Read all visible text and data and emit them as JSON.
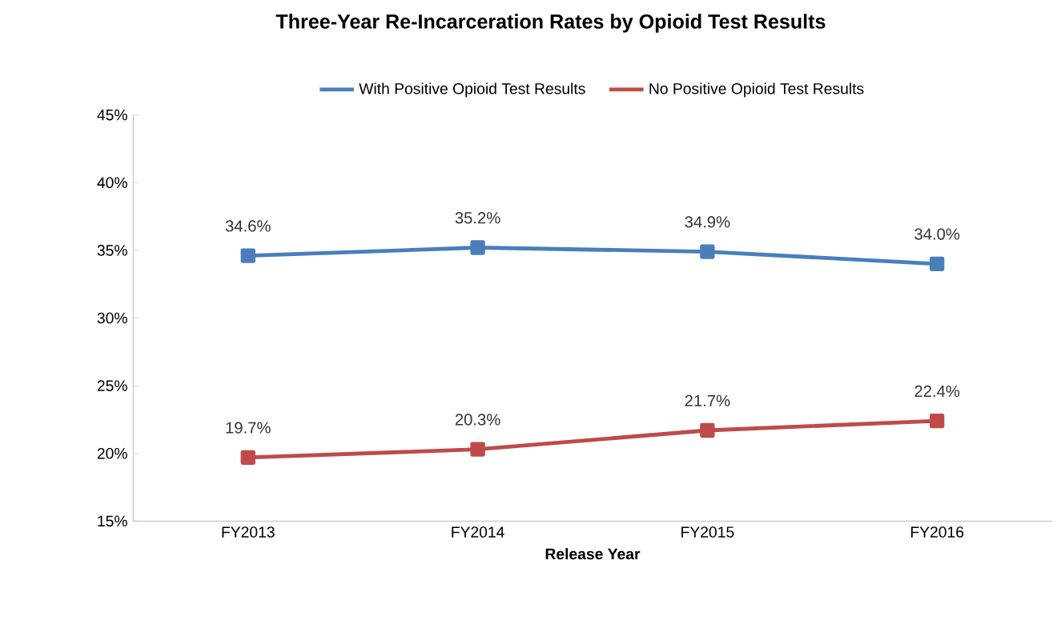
{
  "chart_data": {
    "type": "line",
    "title": "Three-Year Re-Incarceration Rates by Opioid Test Results",
    "xlabel": "Release Year",
    "categories": [
      "FY2013",
      "FY2014",
      "FY2015",
      "FY2016"
    ],
    "series": [
      {
        "name": "With Positive Opioid Test Results",
        "color": "#4a7ebb",
        "values": [
          34.6,
          35.2,
          34.9,
          34.0
        ],
        "value_labels": [
          "34.6%",
          "35.2%",
          "34.9%",
          "34.0%"
        ]
      },
      {
        "name": "No Positive Opioid Test Results",
        "color": "#be4b48",
        "values": [
          19.7,
          20.3,
          21.7,
          22.4
        ],
        "value_labels": [
          "19.7%",
          "20.3%",
          "21.7%",
          "22.4%"
        ]
      }
    ],
    "ylim": [
      15,
      45
    ],
    "yticks": [
      {
        "value": 15,
        "label": "15%"
      },
      {
        "value": 20,
        "label": "20%"
      },
      {
        "value": 25,
        "label": "25%"
      },
      {
        "value": 30,
        "label": "30%"
      },
      {
        "value": 35,
        "label": "35%"
      },
      {
        "value": 40,
        "label": "40%"
      },
      {
        "value": 45,
        "label": "45%"
      }
    ],
    "legend": "top",
    "marker": "square",
    "line_style": "solid",
    "grid": false
  }
}
